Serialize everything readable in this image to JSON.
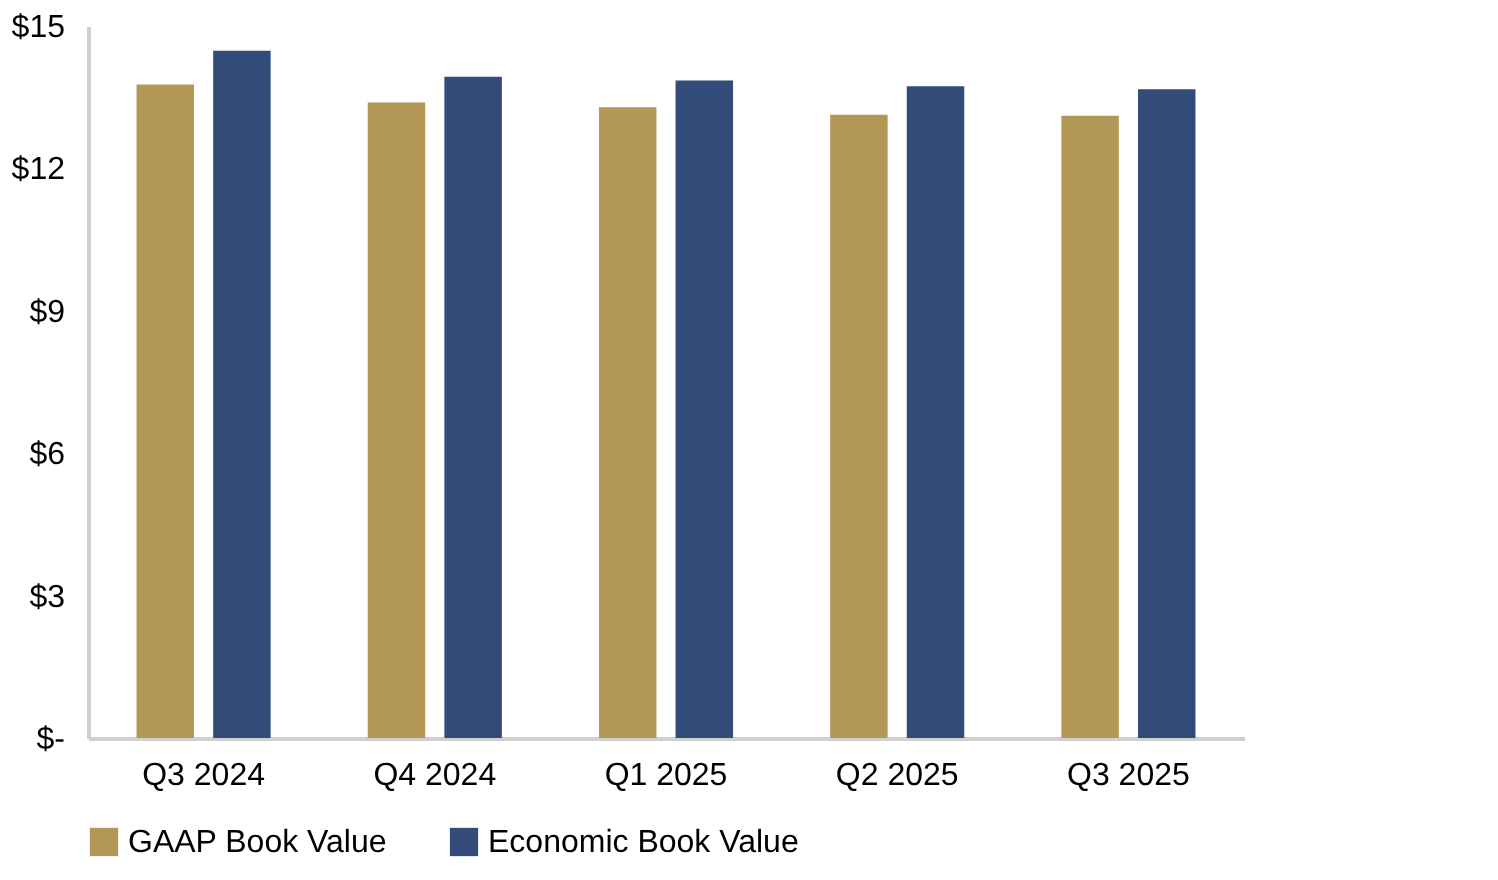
{
  "chart_data": {
    "type": "bar",
    "categories": [
      "Q3 2024",
      "Q4 2024",
      "Q1 2025",
      "Q2 2025",
      "Q3 2025"
    ],
    "series": [
      {
        "name": "GAAP Book Value",
        "color": "#b39757",
        "values": [
          13.77,
          13.39,
          13.29,
          13.13,
          13.11
        ]
      },
      {
        "name": "Economic Book Value",
        "color": "#334b79",
        "values": [
          14.48,
          13.93,
          13.85,
          13.73,
          13.67
        ]
      }
    ],
    "ylim": [
      0,
      15
    ],
    "yticks": [
      {
        "value": 0,
        "label": "$-"
      },
      {
        "value": 3,
        "label": "$3"
      },
      {
        "value": 6,
        "label": "$6"
      },
      {
        "value": 9,
        "label": "$9"
      },
      {
        "value": 12,
        "label": "$12"
      },
      {
        "value": 15,
        "label": "$15"
      }
    ],
    "grid": false,
    "legend": "bottom"
  }
}
